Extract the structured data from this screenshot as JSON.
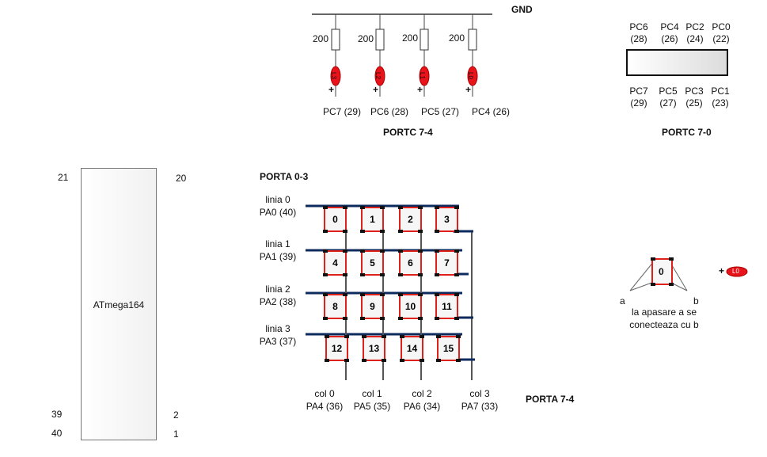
{
  "top_circuit": {
    "gnd_label": "GND",
    "resistor_values": [
      "200",
      "200",
      "200",
      "200"
    ],
    "led_labels": [
      "L3",
      "L2",
      "L1",
      "L0"
    ],
    "plus_sign": "+",
    "pin_labels": [
      "PC7 (29)",
      "PC6 (28)",
      "PC5 (27)",
      "PC4 (26)"
    ],
    "port_title": "PORTC 7-4"
  },
  "portc_connector": {
    "top_pins": [
      {
        "name": "PC6",
        "num": "(28)"
      },
      {
        "name": "PC4",
        "num": "(26)"
      },
      {
        "name": "PC2",
        "num": "(24)"
      },
      {
        "name": "PC0",
        "num": "(22)"
      }
    ],
    "bottom_pins": [
      {
        "name": "PC7",
        "num": "(29)"
      },
      {
        "name": "PC5",
        "num": "(27)"
      },
      {
        "name": "PC3",
        "num": "(25)"
      },
      {
        "name": "PC1",
        "num": "(23)"
      }
    ],
    "title": "PORTC 7-0"
  },
  "chip": {
    "name": "ATmega164",
    "pin_top_left": "21",
    "pin_top_right": "20",
    "pin_39": "39",
    "pin_2": "2",
    "pin_40": "40",
    "pin_1": "1"
  },
  "keypad": {
    "title_rows": "PORTA 0-3",
    "title_cols": "PORTA 7-4",
    "rows": [
      {
        "line": "linia 0",
        "pin": "PA0 (40)"
      },
      {
        "line": "linia 1",
        "pin": "PA1 (39)"
      },
      {
        "line": "linia 2",
        "pin": "PA2 (38)"
      },
      {
        "line": "linia 3",
        "pin": "PA3 (37)"
      }
    ],
    "cols": [
      {
        "name": "col 0",
        "pin": "PA4 (36)"
      },
      {
        "name": "col 1",
        "pin": "PA5 (35)"
      },
      {
        "name": "col 2",
        "pin": "PA6 (34)"
      },
      {
        "name": "col 3",
        "pin": "PA7 (33)"
      }
    ],
    "keys": [
      "0",
      "1",
      "2",
      "3",
      "4",
      "5",
      "6",
      "7",
      "8",
      "9",
      "10",
      "11",
      "12",
      "13",
      "14",
      "15"
    ]
  },
  "legend": {
    "key_label": "0",
    "terminal_a": "a",
    "terminal_b": "b",
    "note_line1": "la apasare a se",
    "note_line2": "conecteaza cu b",
    "led_label": "L0",
    "plus_sign": "+"
  },
  "colors": {
    "wire_row": "#0d2a5e",
    "wire_col": "#555555",
    "key_border": "#e0201a",
    "led_fill": "#e8141c"
  }
}
